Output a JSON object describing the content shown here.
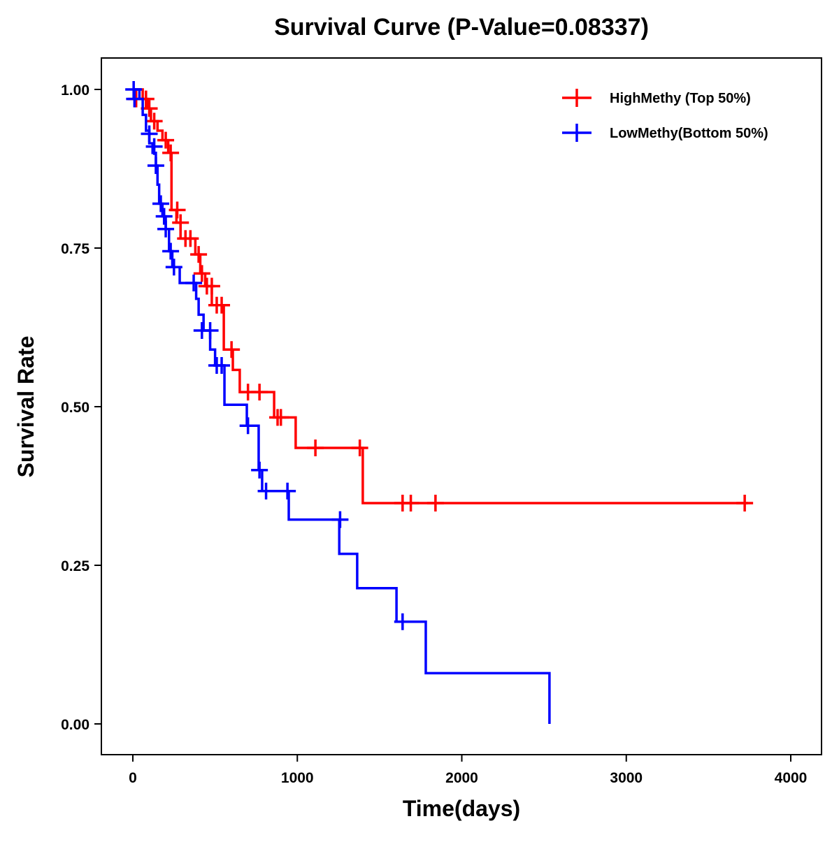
{
  "chart_data": {
    "type": "line",
    "title": "Survival Curve (P-Value=0.08337)",
    "xlabel": "Time(days)",
    "ylabel": "Survival Rate",
    "xlim": [
      -200,
      4180
    ],
    "ylim": [
      -0.048,
      1.05
    ],
    "xticks": [
      0,
      1000,
      2000,
      3000,
      4000
    ],
    "xtick_labels": [
      "0",
      "1000",
      "2000",
      "3000",
      "4000"
    ],
    "yticks": [
      0,
      0.25,
      0.5,
      0.75,
      1.0
    ],
    "ytick_labels": [
      "0.00",
      "0.25",
      "0.50",
      "0.75",
      "1.00"
    ],
    "grid": false,
    "legend_position": "top-right",
    "series": [
      {
        "name": "HighMethy (Top 50%)",
        "color": "#ff0000",
        "end_time": 3740,
        "steps": [
          [
            0,
            1.0
          ],
          [
            60,
            0.985
          ],
          [
            90,
            0.97
          ],
          [
            110,
            0.95
          ],
          [
            150,
            0.935
          ],
          [
            180,
            0.92
          ],
          [
            215,
            0.9
          ],
          [
            235,
            0.81
          ],
          [
            265,
            0.79
          ],
          [
            290,
            0.765
          ],
          [
            380,
            0.74
          ],
          [
            410,
            0.71
          ],
          [
            440,
            0.69
          ],
          [
            480,
            0.66
          ],
          [
            553,
            0.59
          ],
          [
            608,
            0.558
          ],
          [
            650,
            0.523
          ],
          [
            859,
            0.483
          ],
          [
            990,
            0.435
          ],
          [
            1398,
            0.348
          ]
        ],
        "censored": [
          [
            20,
            0.985
          ],
          [
            80,
            0.985
          ],
          [
            100,
            0.97
          ],
          [
            130,
            0.95
          ],
          [
            200,
            0.92
          ],
          [
            230,
            0.9
          ],
          [
            270,
            0.81
          ],
          [
            290,
            0.79
          ],
          [
            320,
            0.765
          ],
          [
            350,
            0.765
          ],
          [
            400,
            0.74
          ],
          [
            420,
            0.71
          ],
          [
            450,
            0.69
          ],
          [
            480,
            0.69
          ],
          [
            510,
            0.66
          ],
          [
            540,
            0.66
          ],
          [
            600,
            0.59
          ],
          [
            700,
            0.523
          ],
          [
            770,
            0.523
          ],
          [
            880,
            0.483
          ],
          [
            900,
            0.483
          ],
          [
            1110,
            0.435
          ],
          [
            1380,
            0.435
          ],
          [
            1640,
            0.348
          ],
          [
            1690,
            0.348
          ],
          [
            1840,
            0.348
          ],
          [
            3720,
            0.348
          ]
        ]
      },
      {
        "name": "LowMethy(Bottom 50%)",
        "color": "#0000ff",
        "end_time": 2533,
        "steps": [
          [
            0,
            1.0
          ],
          [
            40,
            0.985
          ],
          [
            60,
            0.96
          ],
          [
            80,
            0.935
          ],
          [
            100,
            0.915
          ],
          [
            120,
            0.9
          ],
          [
            140,
            0.88
          ],
          [
            150,
            0.85
          ],
          [
            160,
            0.82
          ],
          [
            180,
            0.8
          ],
          [
            200,
            0.78
          ],
          [
            220,
            0.745
          ],
          [
            240,
            0.72
          ],
          [
            285,
            0.695
          ],
          [
            385,
            0.67
          ],
          [
            400,
            0.645
          ],
          [
            430,
            0.62
          ],
          [
            470,
            0.59
          ],
          [
            500,
            0.565
          ],
          [
            557,
            0.503
          ],
          [
            693,
            0.47
          ],
          [
            765,
            0.4
          ],
          [
            786,
            0.367
          ],
          [
            948,
            0.322
          ],
          [
            1255,
            0.268
          ],
          [
            1364,
            0.214
          ],
          [
            1603,
            0.161
          ],
          [
            1781,
            0.08
          ],
          [
            2533,
            0.0
          ]
        ],
        "censored": [
          [
            5,
            1.0
          ],
          [
            10,
            0.985
          ],
          [
            100,
            0.93
          ],
          [
            130,
            0.91
          ],
          [
            140,
            0.88
          ],
          [
            170,
            0.82
          ],
          [
            190,
            0.8
          ],
          [
            200,
            0.78
          ],
          [
            230,
            0.745
          ],
          [
            250,
            0.72
          ],
          [
            370,
            0.695
          ],
          [
            420,
            0.62
          ],
          [
            470,
            0.62
          ],
          [
            510,
            0.565
          ],
          [
            540,
            0.565
          ],
          [
            700,
            0.47
          ],
          [
            770,
            0.4
          ],
          [
            810,
            0.367
          ],
          [
            940,
            0.367
          ],
          [
            1260,
            0.322
          ],
          [
            1640,
            0.161
          ]
        ]
      }
    ]
  }
}
